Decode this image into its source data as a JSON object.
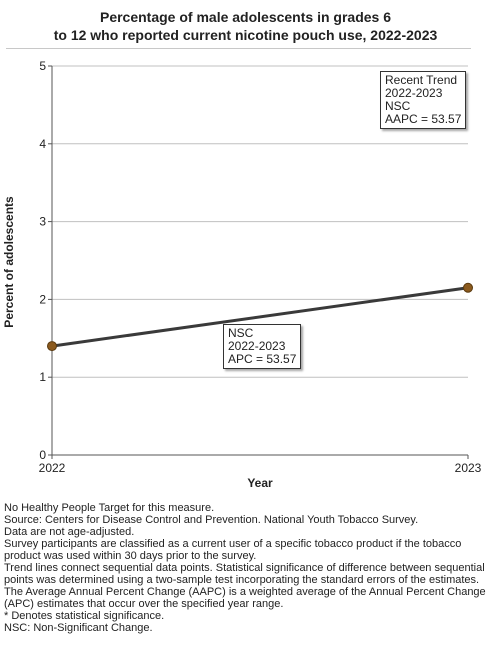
{
  "chart_data": {
    "type": "line",
    "title": "Percentage of male adolescents in grades 6 to 12 who reported current nicotine pouch use, 2022-2023",
    "title_lines": [
      "Percentage of male adolescents in grades 6",
      "to 12 who reported current nicotine pouch use, 2022-2023"
    ],
    "xlabel": "Year",
    "ylabel": "Percent of adolescents",
    "x": [
      "2022",
      "2023"
    ],
    "series": [
      {
        "values": [
          1.4,
          2.15
        ],
        "color": "#3a3a3a",
        "marker_color": "#8b5a1e"
      }
    ],
    "ylim": [
      0,
      5
    ],
    "yticks": [
      "0",
      "1",
      "2",
      "3",
      "4",
      "5"
    ],
    "grid": true,
    "annotations": {
      "recent_trend": [
        "Recent Trend",
        "2022-2023",
        "NSC",
        "AAPC = 53.57"
      ],
      "segment": [
        "NSC",
        "2022-2023",
        "APC = 53.57"
      ]
    }
  },
  "notes": [
    "No Healthy People Target for this measure.",
    "Source: Centers for Disease Control and Prevention. National Youth Tobacco Survey.",
    "Data are not age-adjusted.",
    "Survey participants are classified as a current user of a specific tobacco product if the tobacco product was used within 30 days prior to the survey.",
    "Trend lines connect sequential data points. Statistical significance of difference between sequential points was determined using a two-sample test incorporating the standard errors of the estimates.",
    "The Average Annual Percent Change (AAPC) is a weighted average of the Annual Percent Change (APC) estimates that occur over the specified year range.",
    "* Denotes statistical significance.",
    "NSC: Non-Significant Change."
  ]
}
